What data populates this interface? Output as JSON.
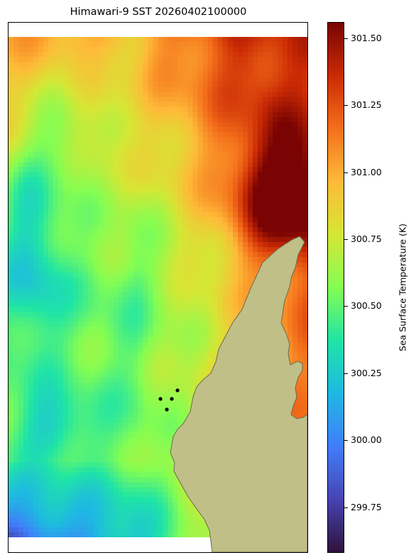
{
  "title": "Himawari-9 SST 20260402100000",
  "colorbar": {
    "label": "Sea Surface Temperature (K)",
    "min": 299.58,
    "max": 301.56,
    "ticks": [
      "299.75",
      "300.00",
      "300.25",
      "300.50",
      "300.75",
      "301.00",
      "301.25",
      "301.50"
    ],
    "colormap": "turbo"
  },
  "colors": {
    "land_fill": "#c0bf88",
    "coastline": "#6b6b50",
    "station_marker": "#000000"
  },
  "map": {
    "layer": "sea-surface-temperature",
    "station_markers": 4
  }
}
